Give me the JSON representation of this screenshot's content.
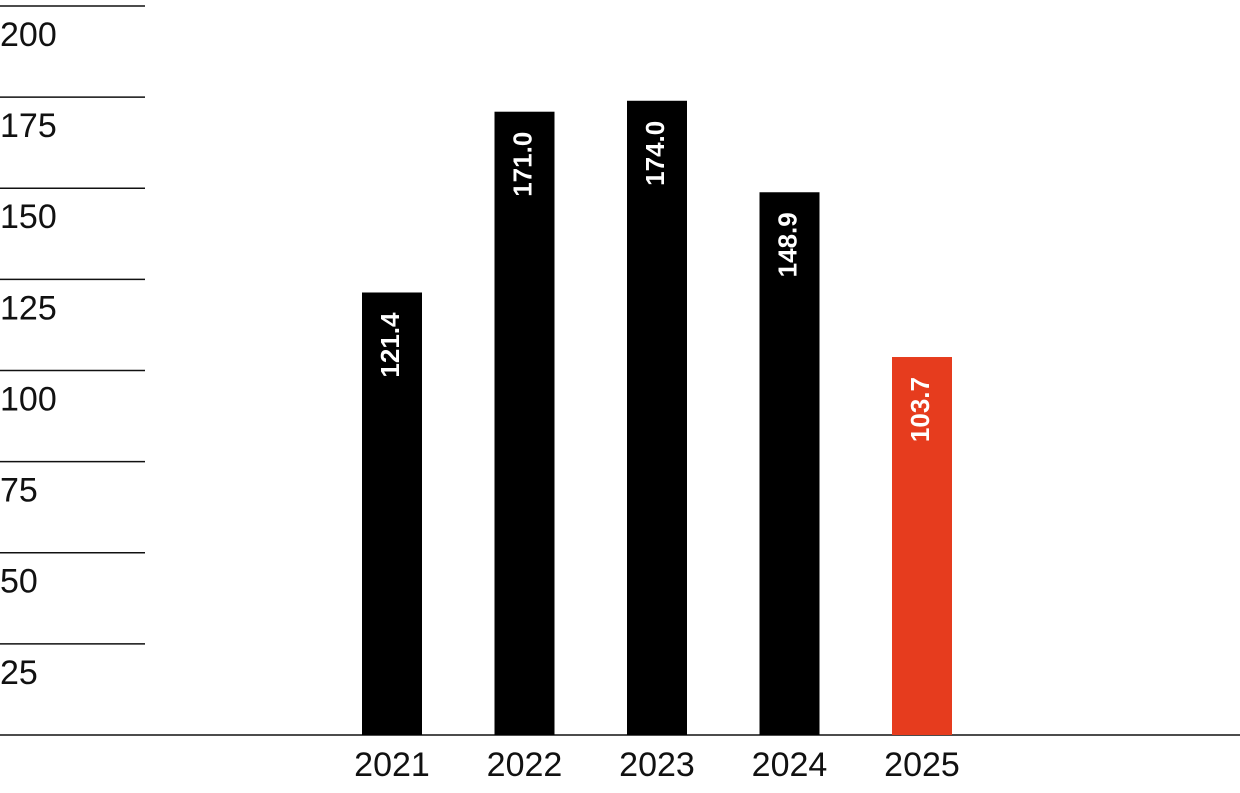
{
  "chart_data": {
    "type": "bar",
    "categories": [
      "2021",
      "2022",
      "2023",
      "2024",
      "2025"
    ],
    "values": [
      121.4,
      171.0,
      174.0,
      148.9,
      103.7
    ],
    "value_labels": [
      "121.4",
      "171.0",
      "174.0",
      "148.9",
      "103.7"
    ],
    "colors": [
      "#000000",
      "#000000",
      "#000000",
      "#000000",
      "#e63c1e"
    ],
    "ylim": [
      0,
      200
    ],
    "yticks": [
      25,
      50,
      75,
      100,
      125,
      150,
      175,
      200
    ],
    "grid": true
  }
}
